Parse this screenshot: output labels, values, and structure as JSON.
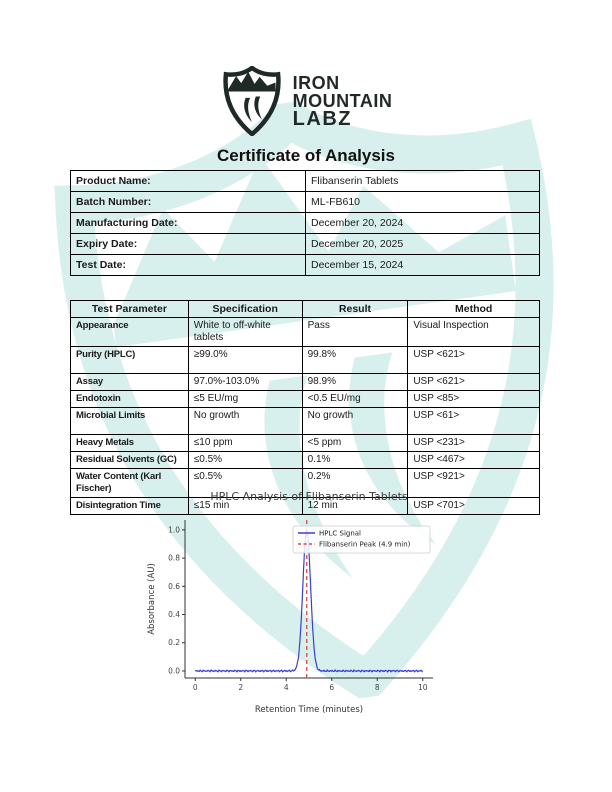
{
  "brand": {
    "line1": "IRON",
    "line2": "MOUNTAIN",
    "line3": "LABZ",
    "logo_color": "#1f2a27",
    "watermark_color": "#b9e4e0"
  },
  "title": "Certificate of Analysis",
  "info_table": {
    "rows": [
      {
        "label": "Product Name:",
        "value": "Flibanserin Tablets"
      },
      {
        "label": "Batch Number:",
        "value": "ML-FB610"
      },
      {
        "label": "Manufacturing Date:",
        "value": "December 20, 2024"
      },
      {
        "label": "Expiry Date:",
        "value": "December 20, 2025"
      },
      {
        "label": "Test Date:",
        "value": "December 15, 2024"
      }
    ]
  },
  "results_table": {
    "headers": [
      "Test Parameter",
      "Specification",
      "Result",
      "Method"
    ],
    "rows": [
      [
        "Appearance",
        "White to off-white tablets",
        "Pass",
        "Visual Inspection"
      ],
      [
        "Purity (HPLC)",
        "≥99.0%",
        "99.8%",
        "USP <621>"
      ],
      [
        "Assay",
        "97.0%-103.0%",
        "98.9%",
        "USP <621>"
      ],
      [
        "Endotoxin",
        "≤5 EU/mg",
        "<0.5 EU/mg",
        "USP <85>"
      ],
      [
        "Microbial Limits",
        "No growth",
        "No growth",
        "USP <61>"
      ],
      [
        "Heavy Metals",
        "≤10 ppm",
        "<5 ppm",
        "USP <231>"
      ],
      [
        "Residual Solvents (GC)",
        "≤0.5%",
        "0.1%",
        "USP <467>"
      ],
      [
        "Water Content (Karl Fischer)",
        "≤0.5%",
        "0.2%",
        "USP <921>"
      ],
      [
        "Disintegration Time",
        "≤15 min",
        "12 min",
        "USP <701>"
      ]
    ]
  },
  "chart_data": {
    "type": "line",
    "title": "HPLC Analysis of Flibanserin Tablets",
    "xlabel": "Retention Time (minutes)",
    "ylabel": "Absorbance (AU)",
    "xlim": [
      -0.45,
      10.45
    ],
    "ylim": [
      -0.05,
      1.07
    ],
    "xticks": [
      0,
      2,
      4,
      6,
      8,
      10
    ],
    "yticks": [
      0.0,
      0.2,
      0.4,
      0.6,
      0.8,
      1.0
    ],
    "grid": false,
    "legend_position": "upper right",
    "legend": [
      {
        "label": "HPLC Signal",
        "color": "#3a3fcf",
        "style": "solid"
      },
      {
        "label": "Flibanserin Peak (4.9 min)",
        "color": "#d64949",
        "style": "dashed"
      }
    ],
    "series": [
      {
        "name": "HPLC Signal",
        "model": "gaussian",
        "x_range": [
          0,
          10
        ],
        "peak_center": 4.9,
        "peak_height": 1.0,
        "peak_sigma": 0.17,
        "baseline": 0.0
      }
    ],
    "annotations": [
      {
        "type": "vline",
        "x": 4.9,
        "label": "Flibanserin Peak (4.9 min)"
      }
    ]
  }
}
